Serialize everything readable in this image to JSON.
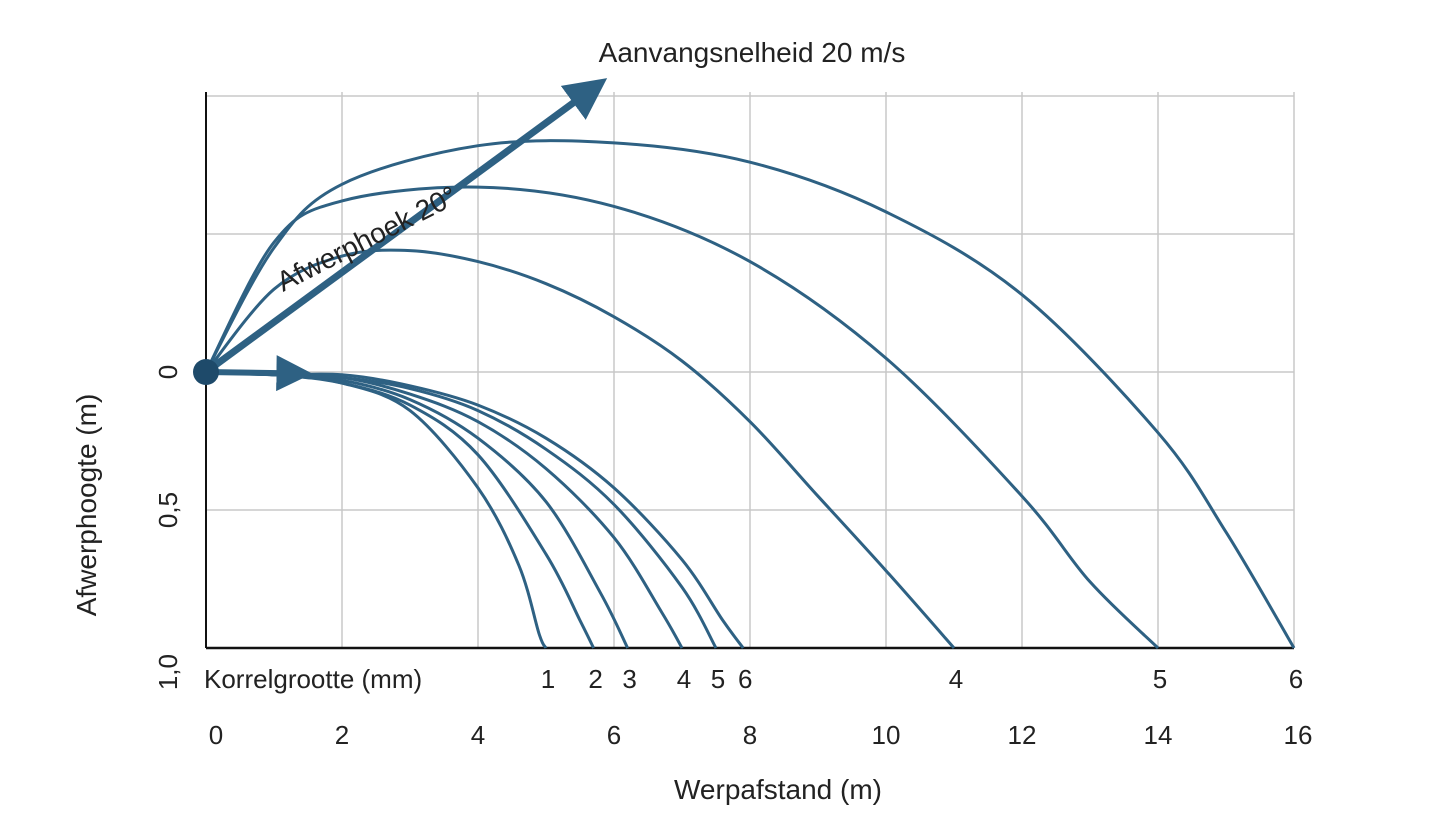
{
  "chart_data": {
    "type": "line",
    "title": "Aanvangsnelheid 20 m/s",
    "xlabel": "Werpafstand (m)",
    "ylabel": "Afwerphoogte (m)",
    "xlim": [
      0,
      16
    ],
    "ylim": [
      1.0,
      -1.0
    ],
    "x_ticks": [
      "0",
      "2",
      "4",
      "6",
      "8",
      "10",
      "12",
      "14",
      "16"
    ],
    "y_ticks": [
      "0",
      "0,5",
      "1,0"
    ],
    "grain_axis_label": "Korrelgrootte (mm)",
    "annotation": "Afwerphoek 20°",
    "grid": true,
    "colors": {
      "curve": "#2e6183",
      "grid": "#c8c8c8",
      "axis": "#111111"
    },
    "series": [
      {
        "name": "1",
        "group": "horizontal",
        "points": [
          [
            0,
            0
          ],
          [
            1,
            0.01
          ],
          [
            2,
            0.04
          ],
          [
            3,
            0.14
          ],
          [
            4,
            0.42
          ],
          [
            4.6,
            0.7
          ],
          [
            4.9,
            0.95
          ],
          [
            5.0,
            1.0
          ]
        ]
      },
      {
        "name": "2",
        "group": "horizontal",
        "points": [
          [
            0,
            0
          ],
          [
            1,
            0.01
          ],
          [
            2,
            0.04
          ],
          [
            3,
            0.12
          ],
          [
            4,
            0.3
          ],
          [
            5,
            0.66
          ],
          [
            5.5,
            0.9
          ],
          [
            5.7,
            1.0
          ]
        ]
      },
      {
        "name": "3",
        "group": "horizontal",
        "points": [
          [
            0,
            0
          ],
          [
            1,
            0.01
          ],
          [
            2,
            0.03
          ],
          [
            3,
            0.1
          ],
          [
            4,
            0.24
          ],
          [
            5,
            0.47
          ],
          [
            5.8,
            0.8
          ],
          [
            6.2,
            1.0
          ]
        ]
      },
      {
        "name": "4",
        "group": "horizontal",
        "points": [
          [
            0,
            0
          ],
          [
            1,
            0.01
          ],
          [
            2,
            0.02
          ],
          [
            3,
            0.08
          ],
          [
            4,
            0.18
          ],
          [
            5,
            0.35
          ],
          [
            6,
            0.6
          ],
          [
            6.7,
            0.87
          ],
          [
            7.0,
            1.0
          ]
        ]
      },
      {
        "name": "5",
        "group": "horizontal",
        "points": [
          [
            0,
            0
          ],
          [
            1,
            0.01
          ],
          [
            2,
            0.02
          ],
          [
            3,
            0.06
          ],
          [
            4,
            0.14
          ],
          [
            5,
            0.28
          ],
          [
            6,
            0.48
          ],
          [
            7,
            0.78
          ],
          [
            7.5,
            1.0
          ]
        ]
      },
      {
        "name": "6",
        "group": "horizontal",
        "points": [
          [
            0,
            0
          ],
          [
            1,
            0.01
          ],
          [
            2,
            0.01
          ],
          [
            3,
            0.05
          ],
          [
            4,
            0.12
          ],
          [
            5,
            0.24
          ],
          [
            6,
            0.42
          ],
          [
            7,
            0.68
          ],
          [
            7.6,
            0.9
          ],
          [
            7.9,
            1.0
          ]
        ]
      },
      {
        "name": "4",
        "group": "angled",
        "points": [
          [
            0,
            0
          ],
          [
            1,
            -0.3
          ],
          [
            2,
            -0.42
          ],
          [
            3,
            -0.44
          ],
          [
            4,
            -0.4
          ],
          [
            5,
            -0.32
          ],
          [
            6,
            -0.2
          ],
          [
            7,
            -0.04
          ],
          [
            8,
            0.18
          ],
          [
            9,
            0.45
          ],
          [
            10,
            0.72
          ],
          [
            11,
            1.0
          ]
        ]
      },
      {
        "name": "5",
        "group": "angled",
        "points": [
          [
            0,
            0
          ],
          [
            1,
            -0.47
          ],
          [
            2,
            -0.62
          ],
          [
            4,
            -0.67
          ],
          [
            6,
            -0.6
          ],
          [
            8,
            -0.4
          ],
          [
            10,
            -0.05
          ],
          [
            12,
            0.45
          ],
          [
            13,
            0.76
          ],
          [
            14,
            1.0
          ]
        ]
      },
      {
        "name": "6",
        "group": "angled",
        "points": [
          [
            0,
            0
          ],
          [
            1,
            -0.45
          ],
          [
            2,
            -0.68
          ],
          [
            4,
            -0.82
          ],
          [
            6,
            -0.83
          ],
          [
            8,
            -0.76
          ],
          [
            10,
            -0.58
          ],
          [
            12,
            -0.28
          ],
          [
            14,
            0.22
          ],
          [
            15,
            0.58
          ],
          [
            16,
            1.0
          ]
        ]
      }
    ]
  }
}
